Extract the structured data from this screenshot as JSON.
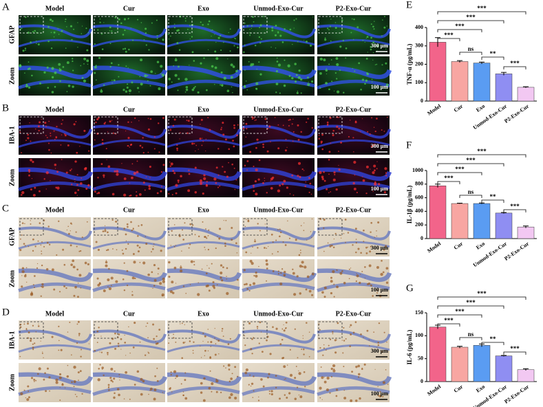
{
  "panels": [
    {
      "letter": "A",
      "columns": [
        "Model",
        "Cur",
        "Exo",
        "Unmod-Exo-Cur",
        "P2-Exo-Cur"
      ],
      "rows": [
        "GFAP",
        "Zoom"
      ],
      "scale_bars": [
        "300 μm",
        "100 μm"
      ],
      "style": "fluor-green"
    },
    {
      "letter": "B",
      "columns": [
        "Model",
        "Cur",
        "Exo",
        "Unmod-Exo-Cur",
        "P2-Exo-Cur"
      ],
      "rows": [
        "IBA-1",
        "Zoom"
      ],
      "scale_bars": [
        "300 μm",
        "100 μm"
      ],
      "style": "fluor-red"
    },
    {
      "letter": "C",
      "columns": [
        "Model",
        "Cur",
        "Exo",
        "Unmod-Exo-Cur",
        "P2-Exo-Cur"
      ],
      "rows": [
        "GFAP",
        "Zoom"
      ],
      "scale_bars": [
        "300 μm",
        "100 μm"
      ],
      "style": "ihc"
    },
    {
      "letter": "D",
      "columns": [
        "Model",
        "Cur",
        "Exo",
        "Unmod-Exo-Cur",
        "P2-Exo-Cur"
      ],
      "rows": [
        "IBA-1",
        "Zoom"
      ],
      "scale_bars": [
        "300 μm",
        "100 μm"
      ],
      "style": "ihc"
    }
  ],
  "chart_data": [
    {
      "type": "bar",
      "letter": "E",
      "y_label": "TNF-α (pg/mL)",
      "categories": [
        "Model",
        "Cur",
        "Exo",
        "Unmod-Exo-Cur",
        "P2-Exo-Cur"
      ],
      "values": [
        320,
        215,
        207,
        148,
        75
      ],
      "errors": [
        25,
        5,
        5,
        8,
        3
      ],
      "colors": [
        "#f2648a",
        "#f8a6a2",
        "#5a9cf2",
        "#8f8ef2",
        "#f2c8f2"
      ],
      "ylim": [
        0,
        400
      ],
      "yticks": [
        0,
        100,
        200,
        300,
        400
      ],
      "annotations": [
        "***",
        "***",
        "***",
        "***",
        "ns",
        "**",
        "***"
      ]
    },
    {
      "type": "bar",
      "letter": "F",
      "y_label": "IL-1β (pg/mL)",
      "categories": [
        "Model",
        "Cur",
        "Exo",
        "Unmod-Exo-Cur",
        "P2-Exo-Cur"
      ],
      "values": [
        775,
        515,
        515,
        375,
        170
      ],
      "errors": [
        25,
        5,
        8,
        8,
        15
      ],
      "colors": [
        "#f2648a",
        "#f8a6a2",
        "#5a9cf2",
        "#8f8ef2",
        "#f2c8f2"
      ],
      "ylim": [
        0,
        1000
      ],
      "yticks": [
        0,
        200,
        400,
        600,
        800,
        1000
      ],
      "annotations": [
        "***",
        "***",
        "***",
        "***",
        "ns",
        "**",
        "***"
      ]
    },
    {
      "type": "bar",
      "letter": "G",
      "y_label": "IL-6 (pg/mL)",
      "categories": [
        "Model",
        "Cur",
        "Exo",
        "Unmod-Exo-Cur",
        "P2-Exo-Cur"
      ],
      "values": [
        119,
        75,
        79,
        56,
        26
      ],
      "errors": [
        4,
        2,
        3,
        1,
        2
      ],
      "colors": [
        "#f2648a",
        "#f8a6a2",
        "#5a9cf2",
        "#8f8ef2",
        "#f2c8f2"
      ],
      "ylim": [
        0,
        150
      ],
      "yticks": [
        0,
        50,
        100,
        150
      ],
      "annotations": [
        "***",
        "***",
        "***",
        "***",
        "ns",
        "**",
        "***"
      ]
    }
  ]
}
